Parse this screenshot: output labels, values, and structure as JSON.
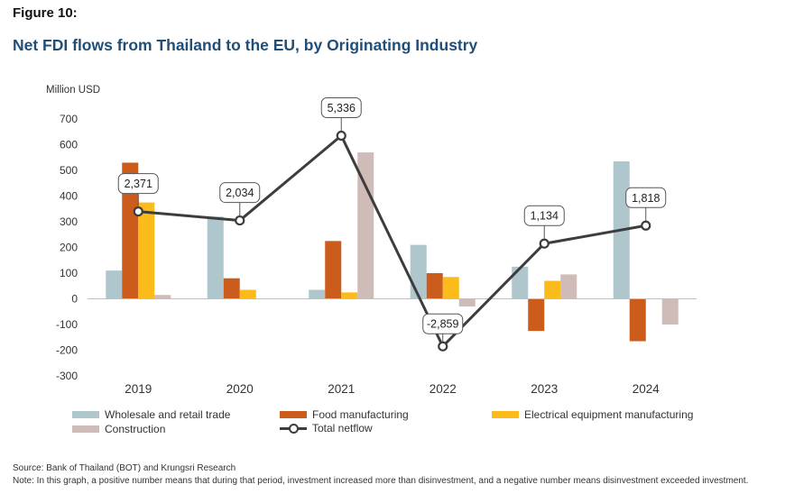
{
  "figure_label": "Figure 10:",
  "title": "Net FDI flows from Thailand to the EU, by Originating Industry",
  "source": "Source: Bank of Thailand (BOT) and Krungsri Research",
  "note": "Note: In this graph, a positive number means that during that period, investment increased more than disinvestment, and a negative number means disinvestment exceeded investment.",
  "chart_data": {
    "type": "bar",
    "ylabel": "Million USD",
    "ylim": [
      -300,
      700
    ],
    "yticks": [
      700,
      600,
      500,
      400,
      300,
      200,
      100,
      0,
      -100,
      -200,
      -300
    ],
    "categories": [
      "2019",
      "2020",
      "2021",
      "2022",
      "2023",
      "2024"
    ],
    "series": [
      {
        "name": "Wholesale and retail trade",
        "color": "#aec6cc",
        "values": [
          110,
          320,
          35,
          210,
          125,
          535
        ]
      },
      {
        "name": "Food manufacturing",
        "color": "#cc5c1c",
        "values": [
          530,
          80,
          225,
          100,
          -125,
          -165
        ]
      },
      {
        "name": "Electrical equipment manufacturing",
        "color": "#fbbc1b",
        "values": [
          375,
          35,
          25,
          85,
          70,
          0
        ]
      },
      {
        "name": "Construction",
        "color": "#cfbcb8",
        "values": [
          15,
          0,
          570,
          -30,
          95,
          -100
        ]
      }
    ],
    "line": {
      "name": "Total netflow",
      "color": "#3d3d3d",
      "labels": [
        "2,371",
        "2,034",
        "5,336",
        "-2,859",
        "1,134",
        "1,818"
      ],
      "plot_values": [
        340,
        305,
        635,
        -185,
        215,
        285
      ]
    },
    "legend_position": "bottom"
  }
}
